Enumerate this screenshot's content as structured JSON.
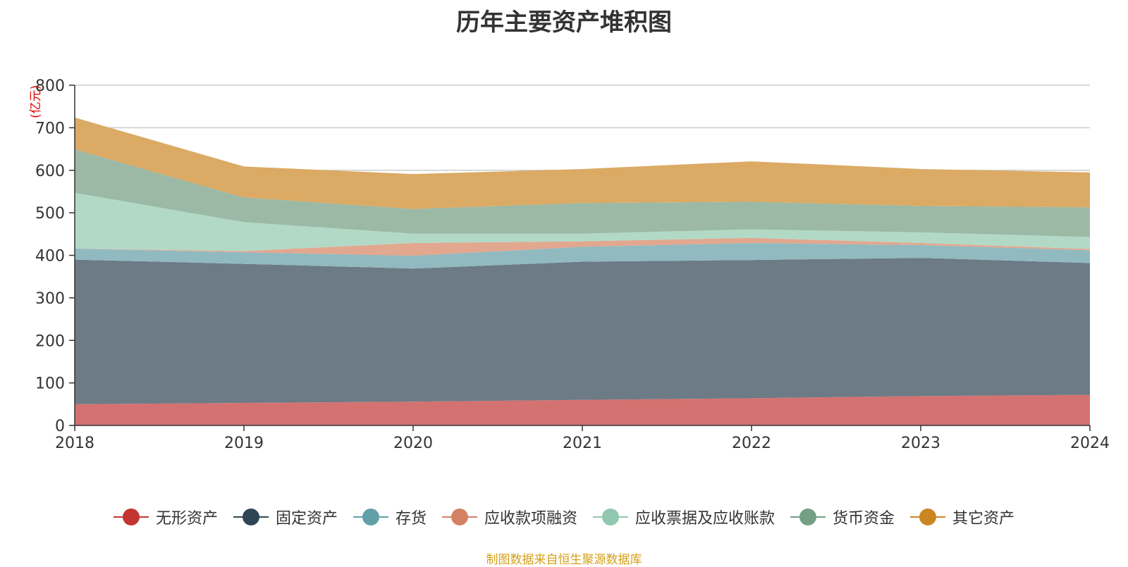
{
  "chart_data": {
    "type": "area",
    "stacked": true,
    "title": "历年主要资产堆积图",
    "ylabel": "(亿元)",
    "ylim": [
      0,
      800
    ],
    "yticks": [
      0,
      100,
      200,
      300,
      400,
      500,
      600,
      700,
      800
    ],
    "grid": true,
    "legend_position": "bottom",
    "categories": [
      "2018",
      "2019",
      "2020",
      "2021",
      "2022",
      "2023",
      "2024"
    ],
    "series": [
      {
        "name": "无形资产",
        "color": "#c23531",
        "fill": "#d47271",
        "values": [
          50,
          53,
          56,
          60,
          64,
          69,
          72
        ]
      },
      {
        "name": "固定资产",
        "color": "#2f4554",
        "fill": "#6d7b86",
        "values": [
          340,
          327,
          313,
          325,
          325,
          325,
          310
        ]
      },
      {
        "name": "存货",
        "color": "#61a0a8",
        "fill": "#90bac0",
        "values": [
          26,
          27,
          30,
          35,
          40,
          30,
          30
        ]
      },
      {
        "name": "应收款项融资",
        "color": "#d48265",
        "fill": "#e1a78f",
        "values": [
          0,
          3,
          30,
          13,
          12,
          5,
          3
        ]
      },
      {
        "name": "应收票据及应收账款",
        "color": "#91c7ae",
        "fill": "#b2d9c6",
        "values": [
          131,
          68,
          22,
          18,
          20,
          25,
          28
        ]
      },
      {
        "name": "货币资金",
        "color": "#749f83",
        "fill": "#9bb9a5",
        "values": [
          102,
          58,
          58,
          72,
          65,
          62,
          70
        ]
      },
      {
        "name": "其它资产",
        "color": "#ca8622",
        "fill": "#dbaa64",
        "values": [
          75,
          73,
          82,
          80,
          95,
          87,
          82
        ]
      }
    ]
  },
  "source_note": "制图数据来自恒生聚源数据库"
}
